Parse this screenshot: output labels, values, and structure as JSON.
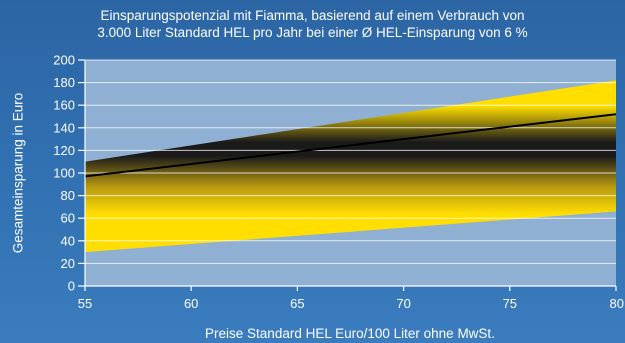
{
  "chart_data": {
    "type": "area",
    "title": "Einsparungspotenzial mit Fiamma, basierend auf einem Verbrauch von",
    "subtitle": "3.000 Liter Standard HEL pro Jahr bei einer Ø HEL-Einsparung von 6 %",
    "xlabel": "Preise Standard HEL Euro/100 Liter ohne MwSt.",
    "ylabel": "Gesamteinsparung in Euro",
    "xlim": [
      55,
      80
    ],
    "ylim": [
      0,
      200
    ],
    "x_ticks": [
      "55",
      "60",
      "65",
      "70",
      "75",
      "80"
    ],
    "y_ticks": [
      "0",
      "20",
      "40",
      "60",
      "80",
      "100",
      "120",
      "140",
      "160",
      "180",
      "200"
    ],
    "grid": true,
    "series": [
      {
        "x": [
          55,
          80
        ],
        "upper": [
          110,
          182
        ],
        "lower": [
          30,
          66
        ]
      },
      {
        "x": [
          55,
          80
        ],
        "values": [
          97,
          152
        ]
      }
    ],
    "colors": {
      "plot_background": "#8fb0d2",
      "band_yellow": "#ffde00",
      "band_dark": "#1a1a1a",
      "center_line": "#000000",
      "grid": "#ffffff",
      "text": "#ffffff"
    }
  }
}
